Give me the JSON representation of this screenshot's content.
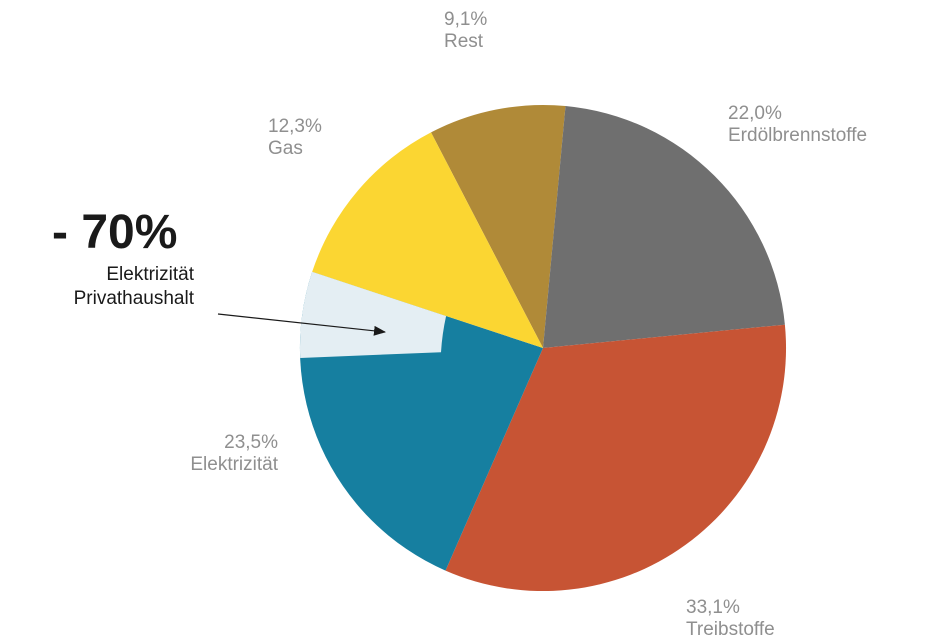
{
  "chart_data": {
    "type": "pie",
    "slices": [
      {
        "label": "Rest",
        "percent_label": "9,1%",
        "value": 9.1,
        "color": "#b08a38"
      },
      {
        "label": "Erdölbrennstoffe",
        "percent_label": "22,0%",
        "value": 22.0,
        "color": "#6f6f6f"
      },
      {
        "label": "Treibstoffe",
        "percent_label": "33,1%",
        "value": 33.1,
        "color": "#c75434"
      },
      {
        "label": "Elektrizität",
        "percent_label": "23,5%",
        "value": 23.5,
        "color": "#167fa0"
      },
      {
        "label": "Gas",
        "percent_label": "12,3%",
        "value": 12.3,
        "color": "#fbd632"
      }
    ],
    "highlight": {
      "value_label": "- 70%",
      "text_line1": "Elektrizität",
      "text_line2": "Privathaushalt",
      "fill_color": "#e4eef3",
      "of_slice": "Elektrizität"
    }
  }
}
